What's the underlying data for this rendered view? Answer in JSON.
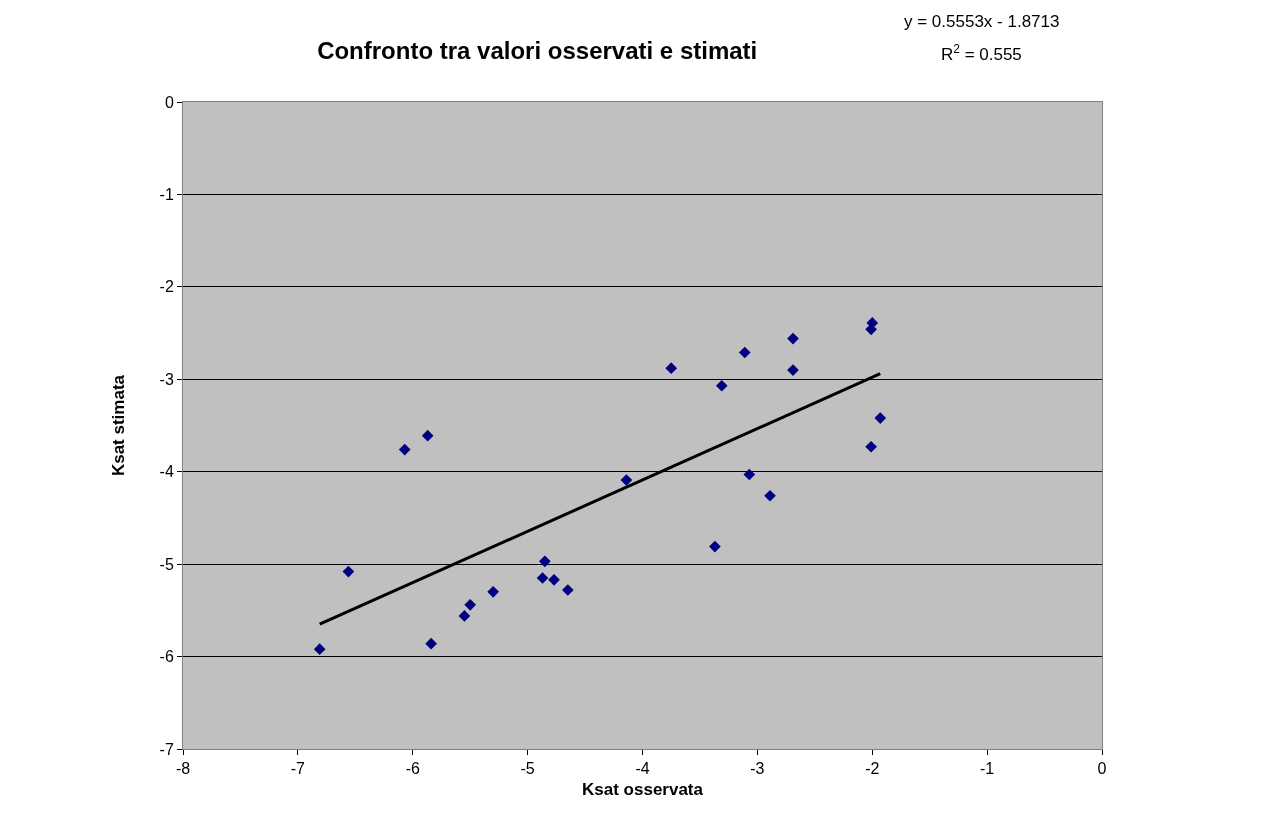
{
  "chart_data": {
    "type": "scatter",
    "title": "Confronto tra valori osservati e stimati",
    "xlabel": "Ksat osservata",
    "ylabel": "Ksat stimata",
    "annotations": [
      "y = 0.5553x - 1.8713",
      "R$^{2}$ = 0.555"
    ],
    "series": [
      {
        "color": "#000080",
        "marker": "diamond",
        "x": [
          -6.81,
          -6.56,
          -6.07,
          -5.87,
          -5.84,
          -5.55,
          -5.5,
          -5.3,
          -4.85,
          -4.87,
          -4.77,
          -4.65,
          -4.14,
          -3.75,
          -3.37,
          -3.31,
          -3.11,
          -3.07,
          -2.89,
          -2.69,
          -2.69,
          -2.01,
          -2.0,
          -2.01,
          -1.93
        ],
        "values": [
          -5.92,
          -5.08,
          -3.76,
          -3.61,
          -5.86,
          -5.56,
          -5.44,
          -5.3,
          -4.97,
          -5.15,
          -5.17,
          -5.28,
          -4.09,
          -2.88,
          -4.81,
          -3.07,
          -2.71,
          -4.03,
          -4.26,
          -2.56,
          -2.9,
          -2.46,
          -2.39,
          -3.73,
          -3.42
        ]
      },
      {
        "type": "line",
        "color": "#000000",
        "marker": "none",
        "line_style": "solid",
        "x": [
          -6.81,
          -1.93
        ],
        "values": [
          -5.65,
          -2.94
        ]
      }
    ],
    "xlim": [
      -8,
      0
    ],
    "xticks": [
      -8,
      -7,
      -6,
      -5,
      -4,
      -3,
      -2,
      -1,
      0
    ],
    "ylim": [
      -7,
      0
    ],
    "yticks": [
      -7,
      -6,
      -5,
      -4,
      -3,
      -2,
      -1,
      0
    ],
    "grid": "y",
    "legend": false
  }
}
